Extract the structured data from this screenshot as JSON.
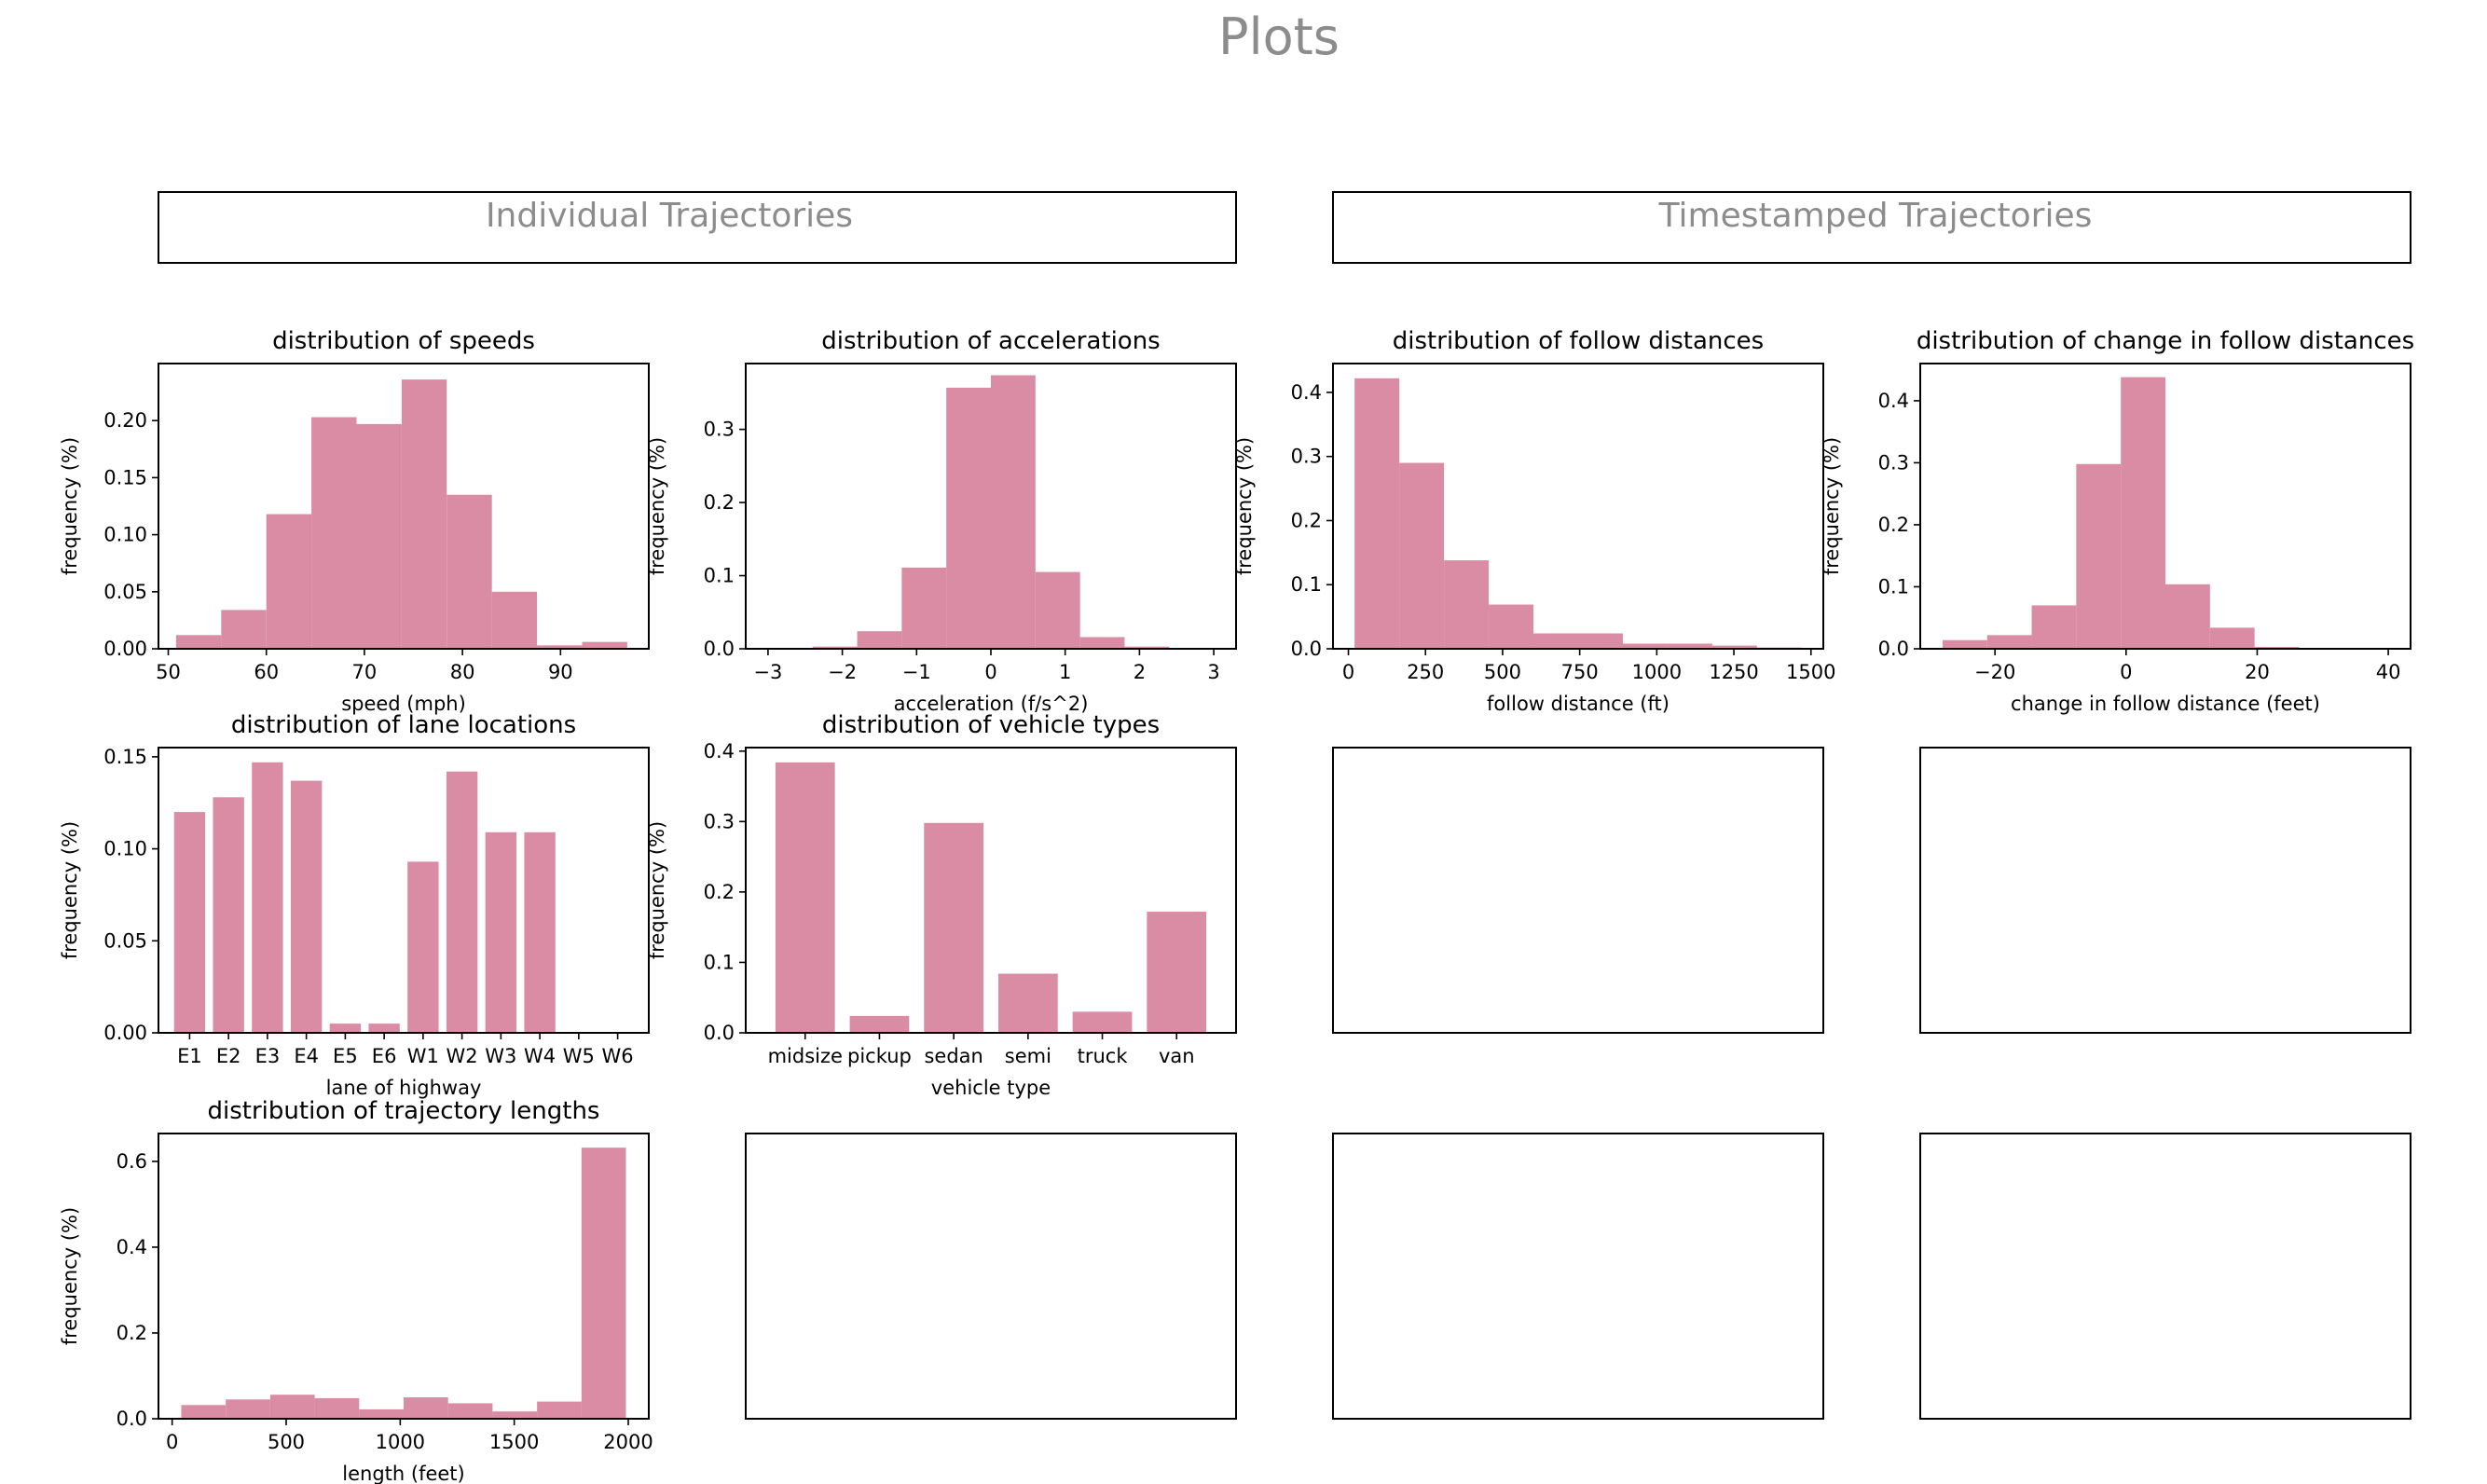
{
  "figure": {
    "title": "Plots",
    "sections": [
      "Individual Trajectories",
      "Timestamped Trajectories"
    ],
    "bar_color": "#d98ca4"
  },
  "chart_data": [
    {
      "id": "speeds",
      "type": "bar",
      "title": "distribution of speeds",
      "xlabel": "speed (mph)",
      "ylabel": "frequency (%)",
      "bin_edges": [
        50.8,
        55.4,
        60,
        64.6,
        69.2,
        73.8,
        78.4,
        83,
        87.6,
        92.2,
        96.8
      ],
      "values": [
        0.012,
        0.034,
        0.118,
        0.203,
        0.197,
        0.236,
        0.135,
        0.05,
        0.003,
        0.006
      ],
      "xlim": [
        49,
        99
      ],
      "ylim": [
        0,
        0.25
      ],
      "xticks": [
        50,
        60,
        70,
        80,
        90
      ],
      "yticks": [
        0,
        0.05,
        0.1,
        0.15,
        0.2
      ],
      "xtick_labels": [
        "50",
        "60",
        "70",
        "80",
        "90"
      ],
      "ytick_labels": [
        "0.00",
        "0.05",
        "0.10",
        "0.15",
        "0.20"
      ],
      "grid": false
    },
    {
      "id": "accelerations",
      "type": "bar",
      "title": "distribution of accelerations",
      "xlabel": "acceleration (f/s^2)",
      "ylabel": "frequency (%)",
      "bin_edges": [
        -3.0,
        -2.4,
        -1.8,
        -1.2,
        -0.6,
        0.0,
        0.6,
        1.2,
        1.8,
        2.4,
        3.0
      ],
      "values": [
        0.0,
        0.003,
        0.024,
        0.111,
        0.357,
        0.374,
        0.105,
        0.016,
        0.003,
        0.0
      ],
      "xlim": [
        -3.3,
        3.3
      ],
      "ylim": [
        0,
        0.39
      ],
      "xticks": [
        -3,
        -2,
        -1,
        0,
        1,
        2,
        3
      ],
      "yticks": [
        0,
        0.1,
        0.2,
        0.3
      ],
      "xtick_labels": [
        "−3",
        "−2",
        "−1",
        "0",
        "1",
        "2",
        "3"
      ],
      "ytick_labels": [
        "0.0",
        "0.1",
        "0.2",
        "0.3"
      ],
      "grid": false
    },
    {
      "id": "follow",
      "type": "bar",
      "title": "distribution of follow distances",
      "xlabel": "follow distance (ft)",
      "ylabel": "frequency (%)",
      "bin_edges": [
        20,
        165,
        310,
        455,
        600,
        745,
        890,
        1035,
        1180,
        1325,
        1470
      ],
      "values": [
        0.422,
        0.29,
        0.138,
        0.069,
        0.024,
        0.024,
        0.008,
        0.008,
        0.005,
        0.002
      ],
      "xlim": [
        -50,
        1540
      ],
      "ylim": [
        0,
        0.445
      ],
      "xticks": [
        0,
        250,
        500,
        750,
        1000,
        1250,
        1500
      ],
      "yticks": [
        0,
        0.1,
        0.2,
        0.3,
        0.4
      ],
      "xtick_labels": [
        "0",
        "250",
        "500",
        "750",
        "1000",
        "1250",
        "1500"
      ],
      "ytick_labels": [
        "0.0",
        "0.1",
        "0.2",
        "0.3",
        "0.4"
      ],
      "grid": false
    },
    {
      "id": "change_follow",
      "type": "bar",
      "title": "distribution of change in follow distances",
      "xlabel": "change in follow distance (feet)",
      "ylabel": "frequency (%)",
      "bin_edges": [
        -28,
        -21.2,
        -14.4,
        -7.6,
        -0.8,
        6,
        12.8,
        19.6,
        26.4,
        33.2,
        40
      ],
      "values": [
        0.014,
        0.022,
        0.07,
        0.298,
        0.438,
        0.104,
        0.034,
        0.003,
        0.0,
        0.0
      ],
      "xlim": [
        -31.4,
        43.4
      ],
      "ylim": [
        0,
        0.46
      ],
      "xticks": [
        -20,
        0,
        20,
        40
      ],
      "yticks": [
        0,
        0.1,
        0.2,
        0.3,
        0.4
      ],
      "xtick_labels": [
        "−20",
        "0",
        "20",
        "40"
      ],
      "ytick_labels": [
        "0.0",
        "0.1",
        "0.2",
        "0.3",
        "0.4"
      ],
      "grid": false
    },
    {
      "id": "lanes",
      "type": "bar",
      "title": "distribution of lane locations",
      "xlabel": "lane of highway",
      "ylabel": "frequency (%)",
      "categories": [
        "E1",
        "E2",
        "E3",
        "E4",
        "E5",
        "E6",
        "W1",
        "W2",
        "W3",
        "W4",
        "W5",
        "W6"
      ],
      "values": [
        0.12,
        0.128,
        0.147,
        0.137,
        0.005,
        0.005,
        0.093,
        0.142,
        0.109,
        0.109,
        0.0,
        0.0
      ],
      "ylim": [
        0,
        0.155
      ],
      "yticks": [
        0,
        0.05,
        0.1,
        0.15
      ],
      "ytick_labels": [
        "0.00",
        "0.05",
        "0.10",
        "0.15"
      ],
      "grid": false
    },
    {
      "id": "vehicles",
      "type": "bar",
      "title": "distribution of vehicle types",
      "xlabel": "vehicle type",
      "ylabel": "frequency (%)",
      "categories": [
        "midsize",
        "pickup",
        "sedan",
        "semi",
        "truck",
        "van"
      ],
      "values": [
        0.384,
        0.024,
        0.298,
        0.084,
        0.03,
        0.172
      ],
      "ylim": [
        0,
        0.405
      ],
      "yticks": [
        0,
        0.1,
        0.2,
        0.3,
        0.4
      ],
      "ytick_labels": [
        "0.0",
        "0.1",
        "0.2",
        "0.3",
        "0.4"
      ],
      "grid": false
    },
    {
      "id": "lengths",
      "type": "bar",
      "title": "distribution of trajectory lengths",
      "xlabel": "length (feet)",
      "ylabel": "frequency (%)",
      "bin_edges": [
        40,
        235,
        430,
        625,
        820,
        1015,
        1210,
        1405,
        1600,
        1795,
        1990
      ],
      "values": [
        0.032,
        0.045,
        0.056,
        0.048,
        0.022,
        0.05,
        0.036,
        0.017,
        0.04,
        0.632
      ],
      "xlim": [
        -60,
        2090
      ],
      "ylim": [
        0,
        0.665
      ],
      "xticks": [
        0,
        500,
        1000,
        1500,
        2000
      ],
      "yticks": [
        0,
        0.2,
        0.4,
        0.6
      ],
      "xtick_labels": [
        "0",
        "500",
        "1000",
        "1500",
        "2000"
      ],
      "ytick_labels": [
        "0.0",
        "0.2",
        "0.4",
        "0.6"
      ],
      "grid": false
    }
  ]
}
